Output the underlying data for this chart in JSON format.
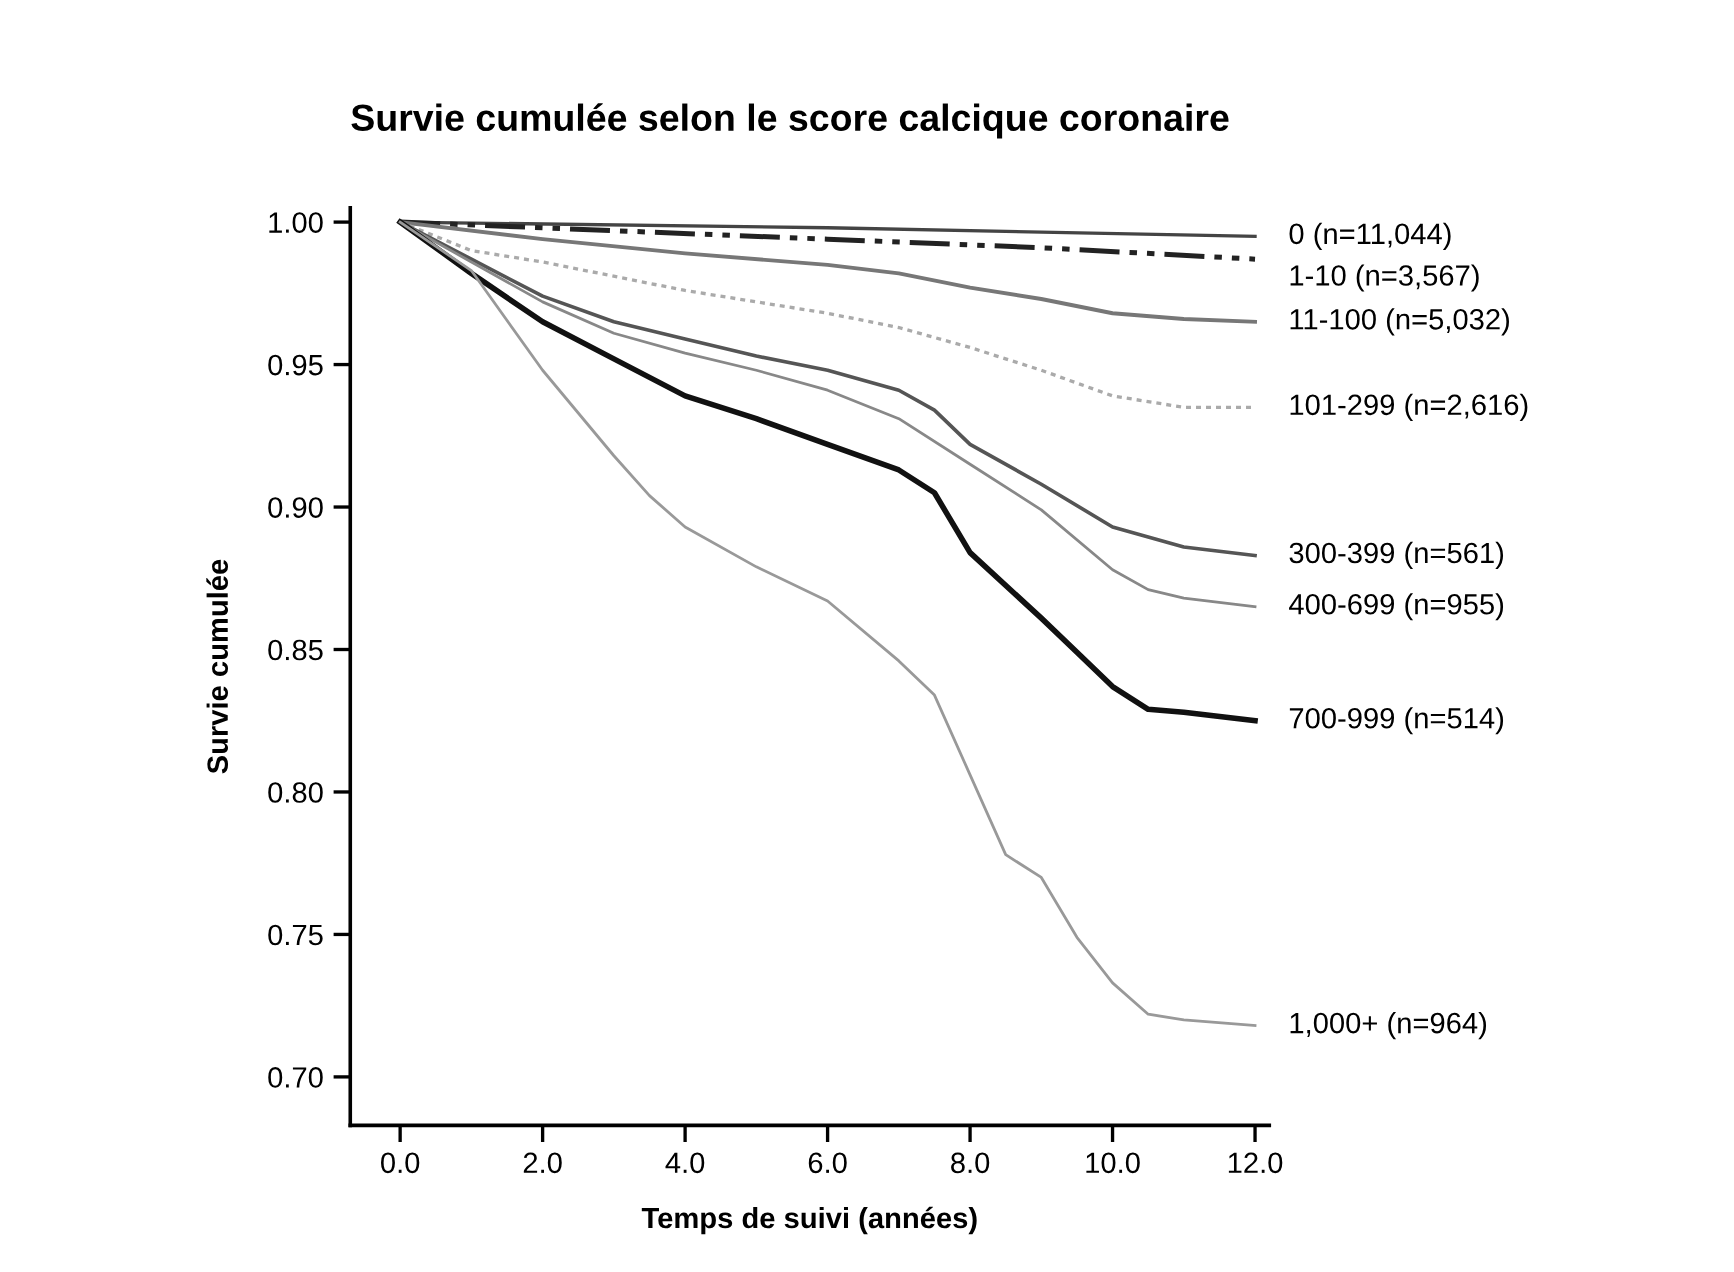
{
  "chart_data": {
    "type": "line",
    "title": "Survie cumulée selon le score calcique coronaire",
    "xlabel": "Temps de suivi (années)",
    "ylabel": "Survie cumulée",
    "xlim": [
      -0.7,
      12.2
    ],
    "ylim": [
      0.683,
      1.005
    ],
    "xticks": [
      {
        "value": 0,
        "label": "0.0"
      },
      {
        "value": 2,
        "label": "2.0"
      },
      {
        "value": 4,
        "label": "4.0"
      },
      {
        "value": 6,
        "label": "6.0"
      },
      {
        "value": 8,
        "label": "8.0"
      },
      {
        "value": 10,
        "label": "10.0"
      },
      {
        "value": 12,
        "label": "12.0"
      }
    ],
    "yticks": [
      {
        "value": 0.7,
        "label": "0.70"
      },
      {
        "value": 0.75,
        "label": "0.75"
      },
      {
        "value": 0.8,
        "label": "0.80"
      },
      {
        "value": 0.85,
        "label": "0.85"
      },
      {
        "value": 0.9,
        "label": "0.90"
      },
      {
        "value": 0.95,
        "label": "0.95"
      },
      {
        "value": 1.0,
        "label": "1.00"
      }
    ],
    "grid": false,
    "legend": false,
    "marker": "none",
    "series": [
      {
        "name": "0 (n=11,044)",
        "color": "#444444",
        "line_style": "solid",
        "x": [
          0,
          6,
          12
        ],
        "values": [
          1.0,
          0.998,
          0.995
        ]
      },
      {
        "name": "1-10 (n=3,567)",
        "color": "#222222",
        "line_style": "dashed",
        "x": [
          0,
          6,
          9,
          12
        ],
        "values": [
          1.0,
          0.994,
          0.991,
          0.987
        ]
      },
      {
        "name": "11-100 (n=5,032)",
        "color": "#777777",
        "line_style": "solid",
        "x": [
          0,
          2,
          4,
          6,
          7,
          8,
          9,
          10,
          11,
          12
        ],
        "values": [
          1.0,
          0.994,
          0.989,
          0.985,
          0.982,
          0.977,
          0.973,
          0.968,
          0.966,
          0.965
        ]
      },
      {
        "name": "101-299 (n=2,616)",
        "color": "#aaaaaa",
        "line_style": "dotted",
        "x": [
          0,
          1,
          2,
          4,
          6,
          7,
          8,
          9,
          10,
          11,
          12
        ],
        "values": [
          1.0,
          0.99,
          0.986,
          0.976,
          0.968,
          0.963,
          0.956,
          0.948,
          0.939,
          0.935,
          0.935
        ]
      },
      {
        "name": "300-399 (n=561)",
        "color": "#555555",
        "line_style": "solid",
        "x": [
          0,
          1,
          2,
          3,
          4,
          5,
          6,
          7,
          7.5,
          8,
          9,
          10,
          11,
          12
        ],
        "values": [
          1.0,
          0.987,
          0.974,
          0.965,
          0.959,
          0.953,
          0.948,
          0.941,
          0.934,
          0.922,
          0.908,
          0.893,
          0.886,
          0.883
        ]
      },
      {
        "name": "400-699 (n=955)",
        "color": "#888888",
        "line_style": "solid",
        "x": [
          0,
          1,
          2,
          3,
          4,
          5,
          6,
          7,
          8,
          9,
          10,
          10.5,
          11,
          12
        ],
        "values": [
          1.0,
          0.986,
          0.972,
          0.961,
          0.954,
          0.948,
          0.941,
          0.931,
          0.915,
          0.899,
          0.878,
          0.871,
          0.868,
          0.865
        ]
      },
      {
        "name": "700-999 (n=514)",
        "color": "#111111",
        "line_style": "solid",
        "x": [
          0,
          1,
          2,
          3,
          4,
          5,
          6,
          7,
          7.5,
          8,
          9,
          9.5,
          10,
          10.5,
          11,
          12
        ],
        "values": [
          1.0,
          0.982,
          0.965,
          0.952,
          0.939,
          0.931,
          0.922,
          0.913,
          0.905,
          0.884,
          0.861,
          0.849,
          0.837,
          0.829,
          0.828,
          0.825
        ]
      },
      {
        "name": "1,000+ (n=964)",
        "color": "#999999",
        "line_style": "solid",
        "x": [
          0,
          1,
          2,
          3,
          3.5,
          4,
          5,
          6,
          7,
          7.5,
          8,
          8.5,
          9,
          9.5,
          10,
          10.5,
          11,
          12
        ],
        "values": [
          1.0,
          0.983,
          0.948,
          0.918,
          0.904,
          0.893,
          0.879,
          0.867,
          0.846,
          0.834,
          0.806,
          0.778,
          0.77,
          0.749,
          0.733,
          0.722,
          0.72,
          0.718
        ]
      }
    ]
  }
}
